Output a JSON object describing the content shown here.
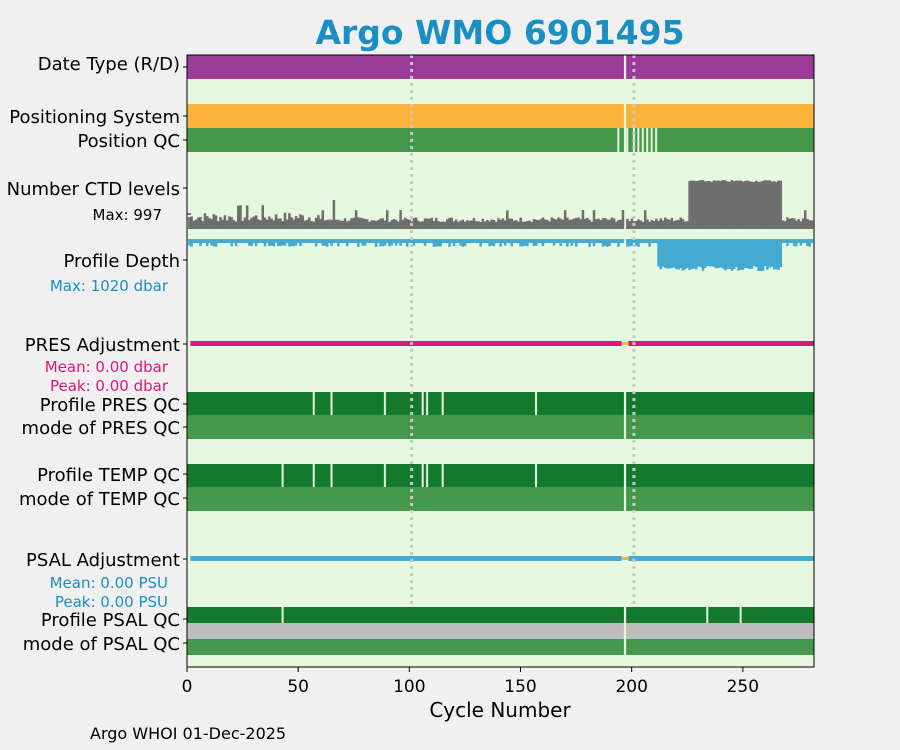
{
  "chart_data": {
    "type": "bar",
    "title": "Argo WMO 6901495",
    "xlabel": "Cycle Number",
    "xlim": [
      0,
      282
    ],
    "xticks": [
      0,
      50,
      100,
      150,
      200,
      250
    ],
    "grid": "dotted vertical lines at cycles 101 and 201",
    "gap_cycle": 197,
    "colors": {
      "title": "#1a8fc1",
      "date_type": "#9b3a97",
      "positioning": "#fbb33c",
      "qc_good": "#46994a",
      "qc_dark": "#137a2d",
      "qc_gray": "#bdbdbd",
      "ctd": "#6e6e6e",
      "depth": "#44aad2",
      "pres_adj": "#e3137c",
      "psal_adj": "#44aad2",
      "panel_bg": "#e6f9e0"
    },
    "rows": {
      "date_type": "Date Type (R/D)",
      "positioning": "Positioning System",
      "position_qc": "Position QC",
      "ctd_levels": "Number CTD levels",
      "ctd_max": "Max: 997",
      "profile_depth": "Profile Depth",
      "depth_max": "Max: 1020 dbar",
      "pres_adjustment": "PRES Adjustment",
      "pres_mean": "Mean: 0.00 dbar",
      "pres_peak": "Peak: 0.00 dbar",
      "profile_pres_qc": "Profile PRES QC",
      "mode_pres_qc": "mode of PRES QC",
      "profile_temp_qc": "Profile TEMP QC",
      "mode_temp_qc": "mode of TEMP QC",
      "psal_adjustment": "PSAL Adjustment",
      "psal_mean": "Mean: 0.00 PSU",
      "psal_peak": "Peak: 0.00 PSU",
      "profile_psal_qc": "Profile PSAL QC",
      "mode_psal_qc": "mode of PSAL QC"
    },
    "position_qc_marks": [
      194,
      198,
      201,
      203,
      205,
      207,
      209,
      211
    ],
    "pres_qc_marks": [
      57,
      65,
      89,
      106,
      108,
      115,
      157
    ],
    "temp_qc_marks": [
      43,
      57,
      65,
      89,
      106,
      108,
      115,
      157
    ],
    "psal_qc_marks": [
      43,
      234,
      249
    ],
    "ctd_levels_high": {
      "start": 226,
      "end": 268,
      "value": 997
    },
    "depth_deep": {
      "start": 212,
      "end": 268,
      "value": 1020
    }
  },
  "footer": "Argo WHOI 01-Dec-2025"
}
